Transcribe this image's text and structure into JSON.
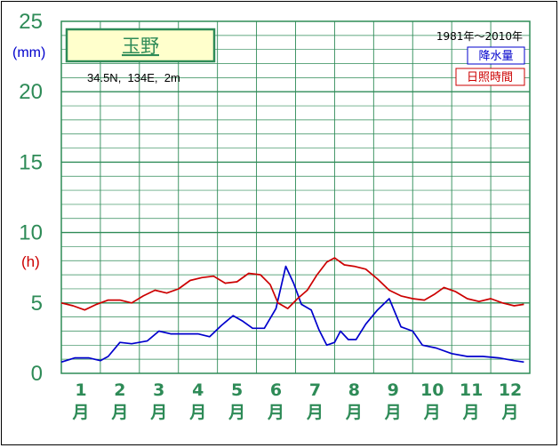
{
  "chart_data": {
    "type": "line",
    "title": "玉野",
    "location": "34.5N,  134E,  2m",
    "period": "1981年〜2010年",
    "units": {
      "precipitation": "(mm)",
      "sunshine": "(h)"
    },
    "ylim": [
      0,
      25
    ],
    "yticks": [
      "0",
      "5",
      "10",
      "15",
      "20",
      "25"
    ],
    "month_numbers": [
      "1",
      "2",
      "3",
      "4",
      "5",
      "6",
      "7",
      "8",
      "9",
      "10",
      "11",
      "12"
    ],
    "month_suffix": "月",
    "grid": true,
    "legend_position": "top-right",
    "series": [
      {
        "name": "降水量",
        "color": "#0000cc",
        "x": [
          0.0,
          0.35,
          0.7,
          1.0,
          1.2,
          1.5,
          1.8,
          2.2,
          2.5,
          2.8,
          3.1,
          3.5,
          3.8,
          4.1,
          4.4,
          4.65,
          4.9,
          5.2,
          5.5,
          5.75,
          5.95,
          6.15,
          6.4,
          6.6,
          6.8,
          7.0,
          7.15,
          7.35,
          7.55,
          7.8,
          8.1,
          8.4,
          8.7,
          9.0,
          9.25,
          9.6,
          10.0,
          10.4,
          10.8,
          11.2,
          11.6,
          11.85
        ],
        "values": [
          0.8,
          1.1,
          1.1,
          0.9,
          1.2,
          2.2,
          2.1,
          2.3,
          3.0,
          2.8,
          2.8,
          2.8,
          2.6,
          3.4,
          4.1,
          3.7,
          3.2,
          3.2,
          4.6,
          7.6,
          6.4,
          4.9,
          4.5,
          3.1,
          2.0,
          2.2,
          3.0,
          2.4,
          2.4,
          3.5,
          4.5,
          5.3,
          3.3,
          3.0,
          2.0,
          1.8,
          1.4,
          1.2,
          1.2,
          1.1,
          0.9,
          0.8
        ]
      },
      {
        "name": "日照時間",
        "color": "#cc0000",
        "x": [
          0.0,
          0.3,
          0.6,
          0.9,
          1.2,
          1.5,
          1.8,
          2.1,
          2.4,
          2.7,
          3.0,
          3.3,
          3.6,
          3.9,
          4.2,
          4.5,
          4.8,
          5.1,
          5.35,
          5.55,
          5.8,
          6.05,
          6.3,
          6.55,
          6.8,
          7.0,
          7.25,
          7.5,
          7.8,
          8.1,
          8.4,
          8.7,
          9.0,
          9.3,
          9.55,
          9.8,
          10.1,
          10.4,
          10.7,
          11.0,
          11.3,
          11.6,
          11.85
        ],
        "values": [
          5.0,
          4.8,
          4.5,
          4.9,
          5.2,
          5.2,
          5.0,
          5.5,
          5.9,
          5.7,
          6.0,
          6.6,
          6.8,
          6.9,
          6.4,
          6.5,
          7.1,
          7.0,
          6.3,
          5.0,
          4.6,
          5.3,
          5.9,
          7.0,
          7.9,
          8.2,
          7.7,
          7.6,
          7.4,
          6.7,
          5.9,
          5.5,
          5.3,
          5.2,
          5.6,
          6.1,
          5.8,
          5.3,
          5.1,
          5.3,
          5.0,
          4.8,
          4.9
        ]
      }
    ]
  }
}
